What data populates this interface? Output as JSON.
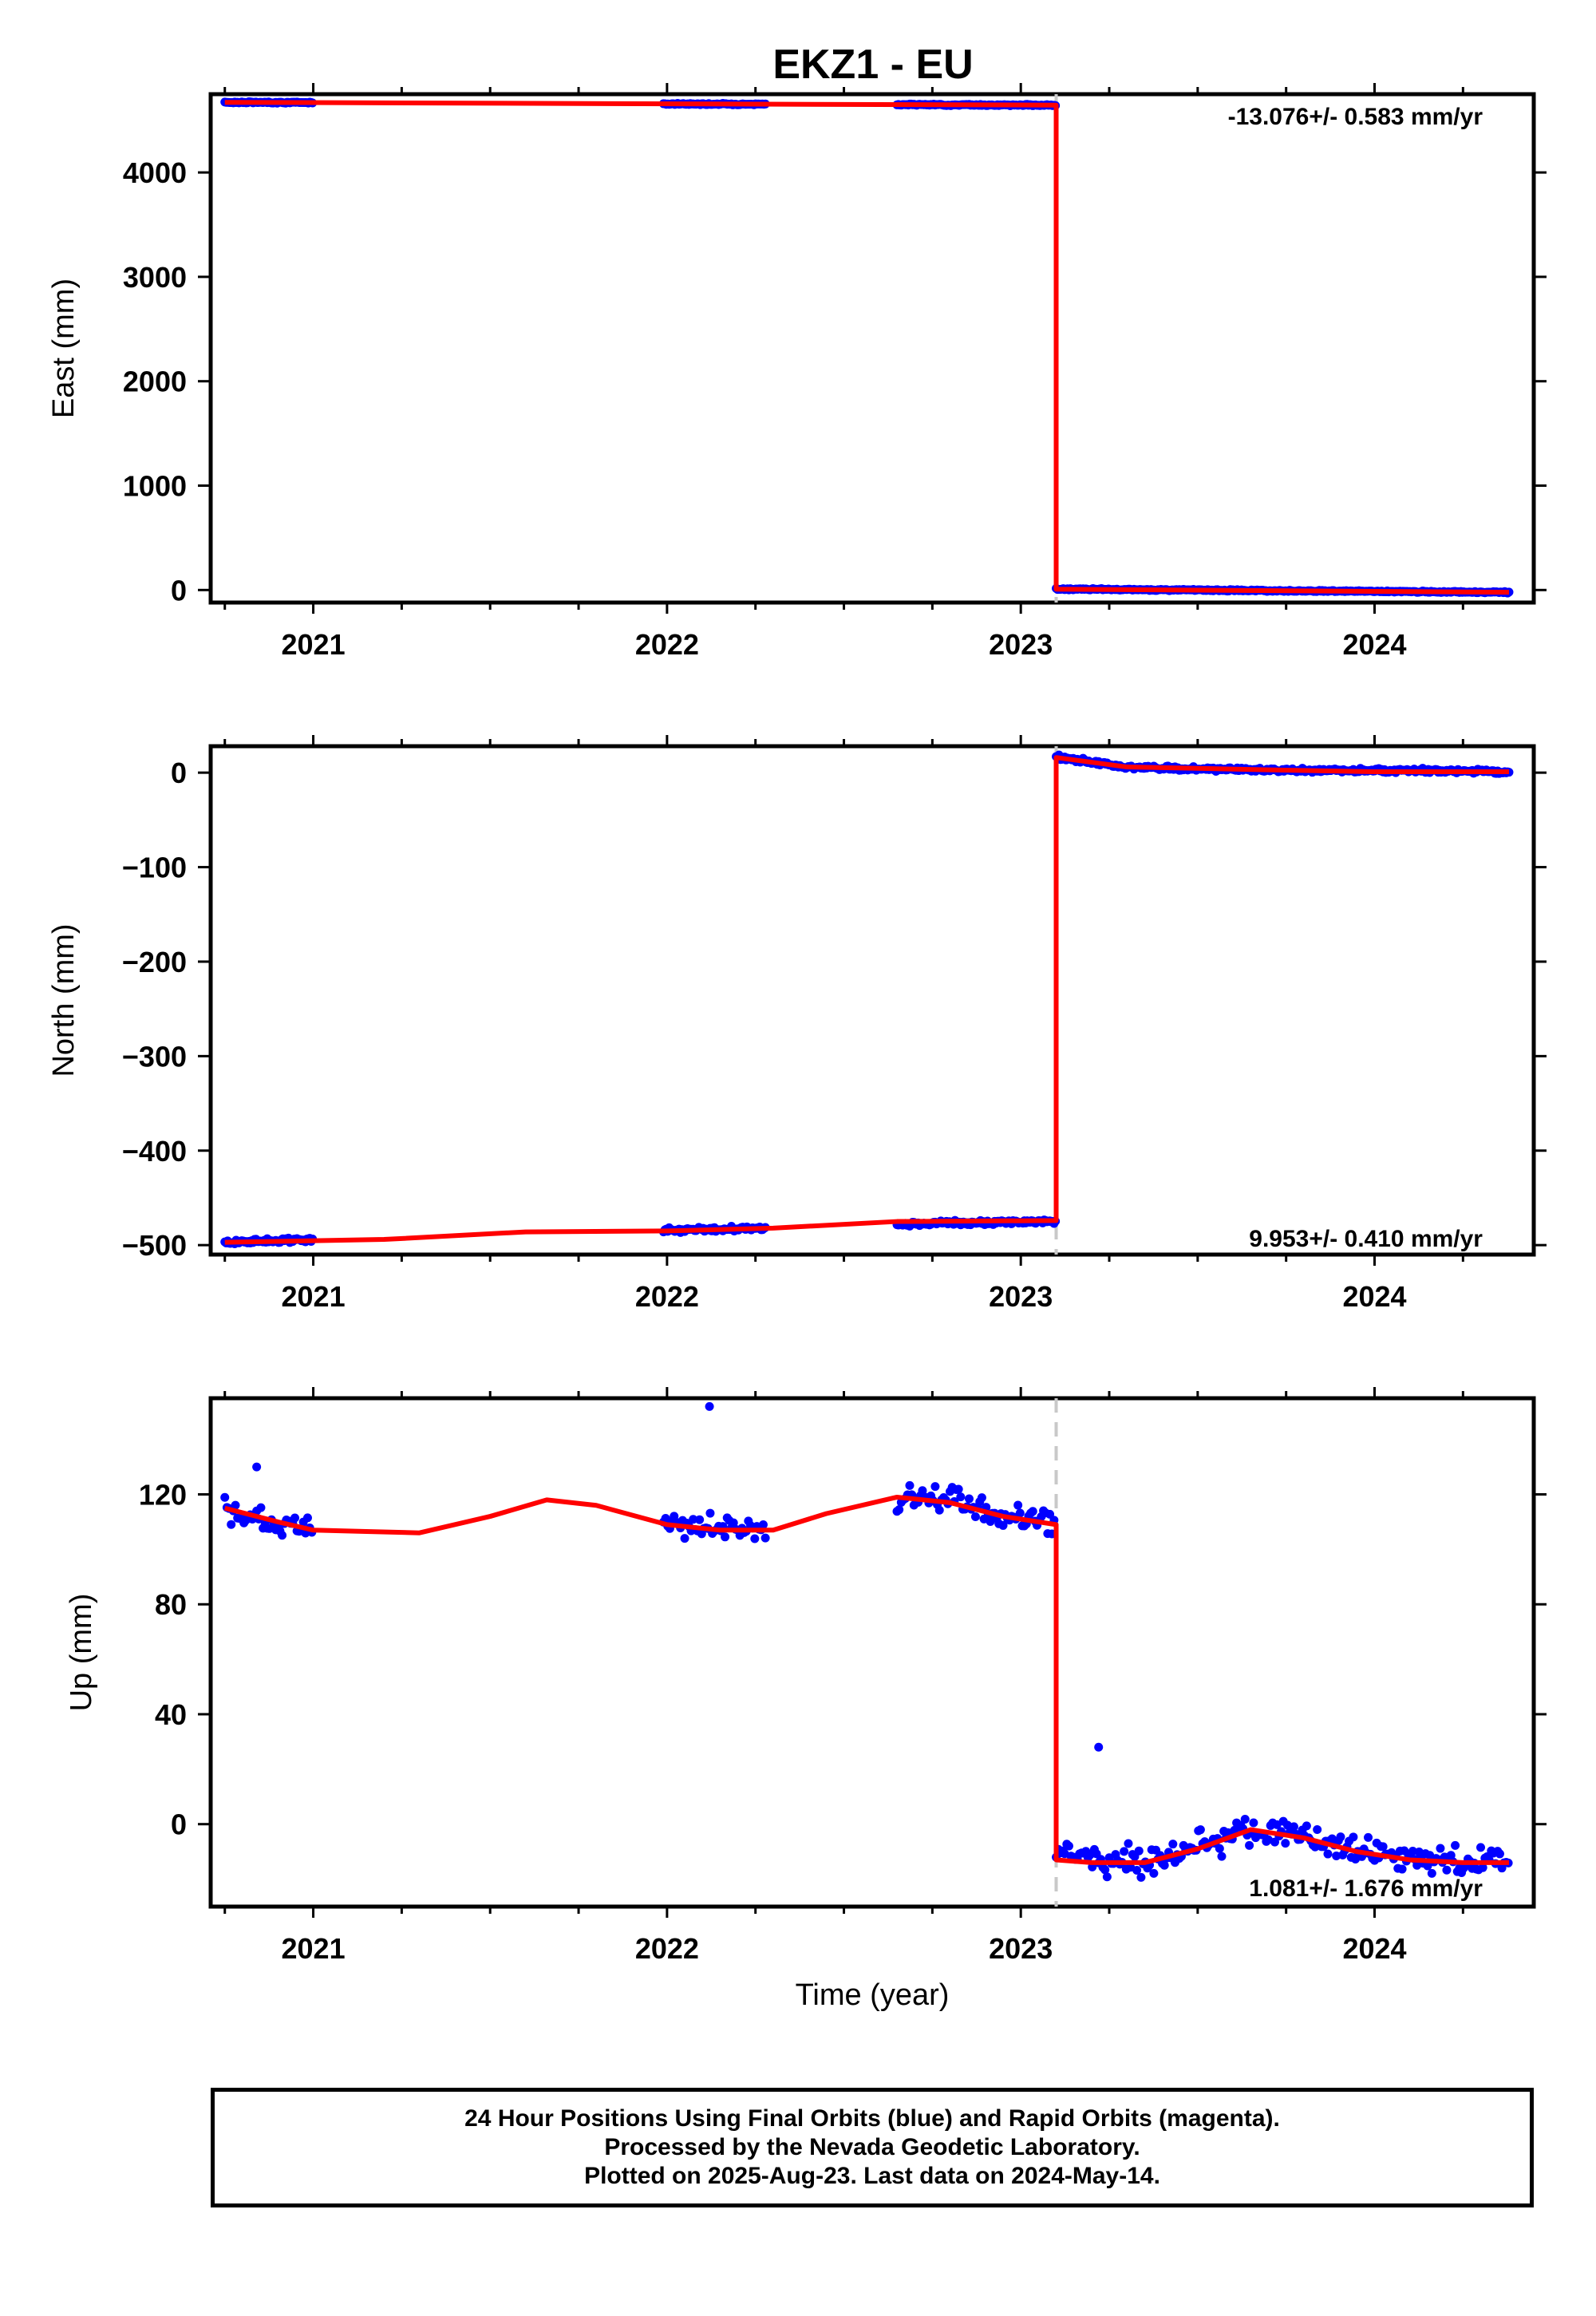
{
  "chart_data": [
    {
      "type": "scatter",
      "title": "EKZ1 - EU",
      "xlabel": "",
      "ylabel": "East (mm)",
      "xlim": [
        2020.71,
        2024.45
      ],
      "ylim": [
        -120,
        4750
      ],
      "yticks": [
        0,
        1000,
        2000,
        3000,
        4000
      ],
      "xticks": [
        2021,
        2022,
        2023,
        2024
      ],
      "offset_epoch": 2023.1,
      "rate_text": "-13.076+/- 0.583 mm/yr",
      "legend": "top-right",
      "colors": {
        "points": "#0000ff",
        "model": "#ff0000",
        "offset_line": "#c8c8c8"
      },
      "data_segments": [
        [
          2020.75,
          2021.0
        ],
        [
          2021.99,
          2022.28
        ],
        [
          2022.65,
          2023.1
        ],
        [
          2023.1,
          2024.38
        ]
      ],
      "series": [
        {
          "name": "Final Orbits (blue)",
          "x": [
            2020.75,
            2020.85,
            2020.95,
            2021.0,
            2021.99,
            2022.1,
            2022.2,
            2022.28,
            2022.65,
            2022.8,
            2022.95,
            2023.09,
            2023.11,
            2023.3,
            2023.5,
            2023.7,
            2023.9,
            2024.1,
            2024.3,
            2024.38
          ],
          "y": [
            4672,
            4671,
            4670,
            4669,
            4657,
            4656,
            4655,
            4654,
            4650,
            4648,
            4646,
            4645,
            8,
            4,
            0,
            -6,
            -10,
            -16,
            -20,
            -22
          ]
        },
        {
          "name": "model",
          "x": [
            2020.75,
            2023.1,
            2023.1,
            2024.38
          ],
          "y": [
            4672,
            4645,
            8,
            -22
          ]
        }
      ]
    },
    {
      "type": "scatter",
      "title": "",
      "xlabel": "",
      "ylabel": "North (mm)",
      "xlim": [
        2020.71,
        2024.45
      ],
      "ylim": [
        -510,
        28
      ],
      "yticks": [
        -500,
        -400,
        -300,
        -200,
        -100,
        0
      ],
      "xticks": [
        2021,
        2022,
        2023,
        2024
      ],
      "offset_epoch": 2023.1,
      "rate_text": "9.953+/- 0.410 mm/yr",
      "legend": "bottom-right",
      "data_segments": [
        [
          2020.75,
          2021.0
        ],
        [
          2021.99,
          2022.28
        ],
        [
          2022.65,
          2023.1
        ],
        [
          2023.1,
          2024.38
        ]
      ],
      "series": [
        {
          "name": "Final Orbits (blue)",
          "x": [
            2020.75,
            2020.9,
            2021.0,
            2022.0,
            2022.15,
            2022.28,
            2022.65,
            2022.9,
            2023.09,
            2023.11,
            2023.3,
            2023.6,
            2023.9,
            2024.2,
            2024.38
          ],
          "y": [
            -497,
            -495,
            -494,
            -484,
            -483,
            -482,
            -478,
            -476,
            -475,
            16,
            6,
            3,
            2,
            2,
            1
          ]
        },
        {
          "name": "model",
          "x": [
            2020.75,
            2021.2,
            2021.6,
            2022.0,
            2022.3,
            2022.65,
            2023.1,
            2023.1,
            2023.3,
            2023.7,
            2024.0,
            2024.38
          ],
          "y": [
            -497,
            -494,
            -486,
            -485,
            -482,
            -475,
            -474,
            16,
            6,
            3,
            1,
            1
          ]
        }
      ]
    },
    {
      "type": "scatter",
      "title": "",
      "xlabel": "Time (year)",
      "ylabel": "Up (mm)",
      "xlim": [
        2020.71,
        2024.45
      ],
      "ylim": [
        -30,
        155
      ],
      "yticks": [
        0,
        40,
        80,
        120
      ],
      "xticks": [
        2021,
        2022,
        2023,
        2024
      ],
      "offset_epoch": 2023.1,
      "rate_text": "1.081+/- 1.676 mm/yr",
      "legend": "bottom-right",
      "data_segments": [
        [
          2020.75,
          2021.0
        ],
        [
          2021.99,
          2022.28
        ],
        [
          2022.65,
          2023.1
        ],
        [
          2023.1,
          2024.38
        ]
      ],
      "outliers": [
        {
          "x": 2022.12,
          "y": 152
        },
        {
          "x": 2023.22,
          "y": 28
        },
        {
          "x": 2020.84,
          "y": 130
        }
      ],
      "series": [
        {
          "name": "Final Orbits (blue)",
          "x": [
            2020.75,
            2020.85,
            2020.95,
            2021.0,
            2022.0,
            2022.1,
            2022.2,
            2022.28,
            2022.65,
            2022.75,
            2022.9,
            2023.05,
            2023.09,
            2023.12,
            2023.25,
            2023.4,
            2023.55,
            2023.65,
            2023.8,
            2023.95,
            2024.1,
            2024.25,
            2024.38
          ],
          "y": [
            114,
            110,
            108,
            107,
            109,
            108,
            107,
            107,
            117,
            119,
            114,
            110,
            109,
            -12,
            -14,
            -12,
            -6,
            -2,
            -4,
            -10,
            -13,
            -14,
            -13
          ]
        },
        {
          "name": "model",
          "x": [
            2020.75,
            2020.9,
            2021.0,
            2021.15,
            2021.3,
            2021.5,
            2021.66,
            2021.8,
            2022.0,
            2022.15,
            2022.3,
            2022.45,
            2022.65,
            2022.8,
            2022.95,
            2023.1,
            2023.1,
            2023.2,
            2023.35,
            2023.5,
            2023.65,
            2023.8,
            2023.95,
            2024.1,
            2024.25,
            2024.38
          ],
          "y": [
            115,
            110,
            107,
            106.5,
            106,
            112,
            118,
            116,
            109,
            107,
            107,
            113,
            119,
            117,
            112,
            109,
            -13,
            -14,
            -14,
            -9,
            -2,
            -5,
            -10,
            -13,
            -14,
            -14
          ]
        }
      ]
    }
  ],
  "footer": {
    "line1": "24 Hour Positions Using Final Orbits (blue) and Rapid Orbits (magenta).",
    "line2": "Processed by the Nevada Geodetic Laboratory.",
    "line3": "Plotted on 2025-Aug-23. Last data on 2024-May-14."
  }
}
